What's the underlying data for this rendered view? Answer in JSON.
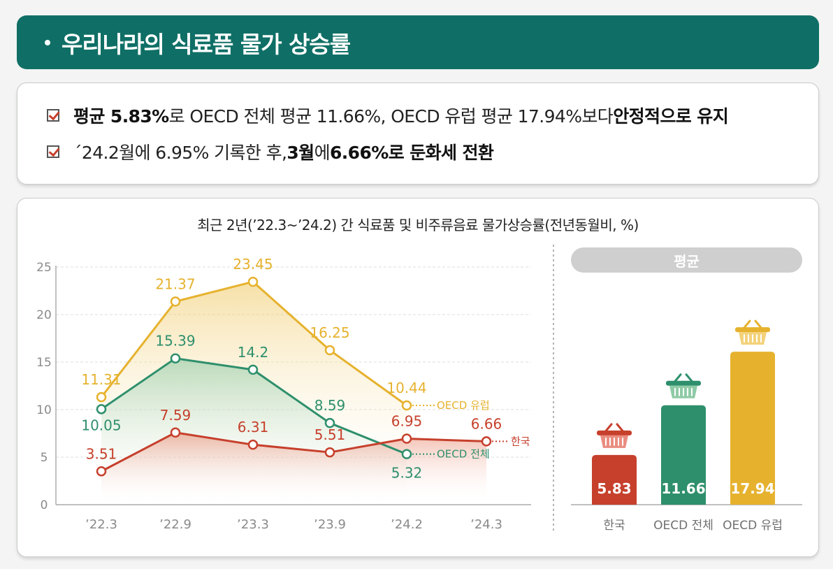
{
  "header": {
    "title": "우리나라의 식료품 물가 상승률"
  },
  "summary": {
    "bullets": [
      {
        "segments": [
          {
            "text": "평균 5.83%",
            "bold": true
          },
          {
            "text": "로 OECD 전체 평균 11.66%, OECD 유럽 평균 17.94%보다 ",
            "bold": false
          },
          {
            "text": "안정적으로 유지",
            "bold": true
          }
        ]
      },
      {
        "segments": [
          {
            "text": "´24.2월에 6.95% 기록한 후, ",
            "bold": false
          },
          {
            "text": "3월",
            "bold": true
          },
          {
            "text": "에 ",
            "bold": false
          },
          {
            "text": "6.66%로 둔화세 전환",
            "bold": true
          }
        ]
      }
    ]
  },
  "chart": {
    "title": "최근 2년(’22.3~’24.2) 간 식료품 및 비주류음료 물가상승률(전년동월비, %)"
  },
  "average": {
    "label": "평균"
  },
  "colors": {
    "header": "#0f6f66",
    "korea": "#c6402c",
    "oecd_total": "#2e8f6c",
    "oecd_europe": "#e6b22e"
  },
  "chart_data": [
    {
      "type": "line",
      "categories": [
        "’22.3",
        "’22.9",
        "’23.3",
        "’23.9",
        "’24.2",
        "’24.3"
      ],
      "ylim": [
        0,
        25
      ],
      "yticks": [
        0,
        5,
        10,
        15,
        20,
        25
      ],
      "grid": true,
      "series": [
        {
          "name": "OECD 유럽",
          "color": "#e6b22e",
          "values": [
            11.31,
            21.37,
            23.45,
            16.25,
            10.44,
            null
          ],
          "labels": [
            "11.31",
            "21.37",
            "23.45",
            "16.25",
            "10.44",
            ""
          ]
        },
        {
          "name": "OECD 전체",
          "color": "#2e8f6c",
          "values": [
            10.05,
            15.39,
            14.2,
            8.59,
            5.32,
            null
          ],
          "labels": [
            "10.05",
            "15.39",
            "14.2",
            "8.59",
            "5.32",
            ""
          ]
        },
        {
          "name": "한국",
          "color": "#c6402c",
          "values": [
            3.51,
            7.59,
            6.31,
            5.51,
            6.95,
            6.66
          ],
          "labels": [
            "3.51",
            "7.59",
            "6.31",
            "5.51",
            "6.95",
            "6.66"
          ]
        }
      ]
    },
    {
      "type": "bar",
      "title": "평균",
      "categories": [
        "한국",
        "OECD 전체",
        "OECD 유럽"
      ],
      "values": [
        5.83,
        11.66,
        17.94
      ],
      "labels": [
        "5.83",
        "11.66",
        "17.94"
      ],
      "colors": [
        "#c6402c",
        "#2e8f6c",
        "#e6b22e"
      ],
      "icon": "basket-icon"
    }
  ]
}
